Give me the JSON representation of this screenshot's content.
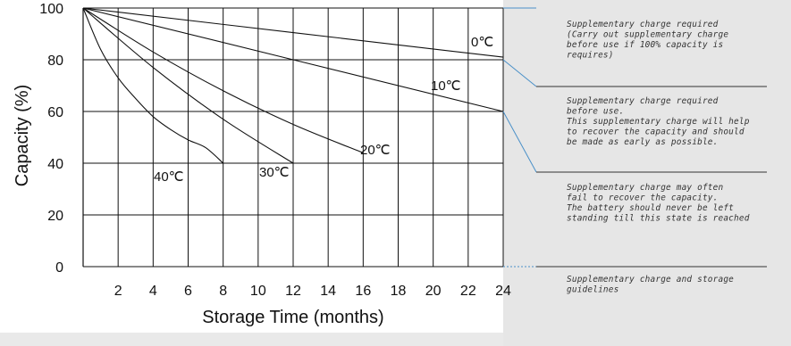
{
  "chart_data": {
    "type": "line",
    "xlabel": "Storage Time (months)",
    "ylabel": "Capacity  (%)",
    "xlim": [
      0,
      24
    ],
    "ylim": [
      0,
      100
    ],
    "x_ticks": [
      "2",
      "4",
      "6",
      "8",
      "10",
      "12",
      "14",
      "16",
      "18",
      "20",
      "22",
      "24"
    ],
    "y_ticks": [
      "0",
      "20",
      "40",
      "60",
      "80",
      "100"
    ],
    "grid": true,
    "series": [
      {
        "name": "0℃",
        "x": [
          0,
          24
        ],
        "y": [
          100,
          81
        ]
      },
      {
        "name": "10℃",
        "x": [
          0,
          24
        ],
        "y": [
          100,
          60
        ]
      },
      {
        "name": "20℃",
        "x": [
          0,
          4,
          8,
          12,
          16
        ],
        "y": [
          100,
          83,
          68,
          55,
          44
        ]
      },
      {
        "name": "30℃",
        "x": [
          0,
          4,
          8,
          12
        ],
        "y": [
          100,
          77,
          57,
          40
        ]
      },
      {
        "name": "40℃",
        "x": [
          0,
          1,
          2,
          3,
          4,
          5,
          6,
          7,
          8
        ],
        "y": [
          100,
          84,
          73,
          65,
          58,
          53,
          49,
          46,
          40
        ]
      }
    ],
    "zones": [
      {
        "range": [
          80,
          100
        ],
        "lines": [
          "Supplementary charge required",
          "(Carry out supplementary charge",
          "before use if 100% capacity is",
          "requires)"
        ]
      },
      {
        "range": [
          60,
          80
        ],
        "lines": [
          "Supplementary charge required",
          "before use.",
          "This supplementary charge will help",
          "to recover the capacity and should",
          "be made  as early as possible."
        ]
      },
      {
        "range": [
          40,
          60
        ],
        "lines": [
          "Supplementary charge may often",
          "fail to recover the capacity.",
          "The battery should never be left",
          "standing till this state is reached"
        ]
      },
      {
        "range": [
          0,
          40
        ],
        "lines": [
          "Supplementary charge and storage",
          "guidelines"
        ]
      }
    ]
  }
}
